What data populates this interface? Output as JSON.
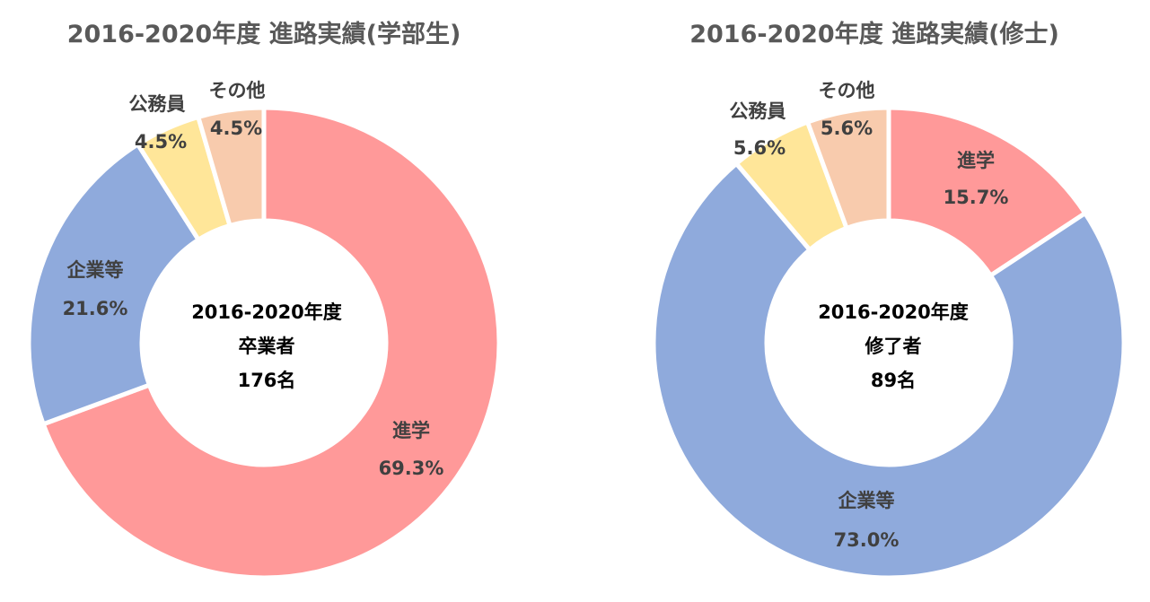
{
  "chart_data": [
    {
      "type": "pie",
      "donut": true,
      "title": "2016-2020年度 進路実績(学部生)",
      "center_label": [
        "2016-2020年度",
        "卒業者",
        "176名"
      ],
      "categories": [
        "進学",
        "企業等",
        "公務員",
        "その他"
      ],
      "values": [
        69.3,
        21.6,
        4.5,
        4.5
      ],
      "value_labels": [
        "69.3%",
        "21.6%",
        "4.5%",
        "4.5%"
      ],
      "colors": [
        "#ff9999",
        "#8faadc",
        "#ffe699",
        "#f8cbad"
      ],
      "legend": "none"
    },
    {
      "type": "pie",
      "donut": true,
      "title": "2016-2020年度 進路実績(修士)",
      "center_label": [
        "2016-2020年度",
        "修了者",
        "89名"
      ],
      "categories": [
        "進学",
        "企業等",
        "公務員",
        "その他"
      ],
      "values": [
        15.7,
        73.0,
        5.6,
        5.6
      ],
      "value_labels": [
        "15.7%",
        "73.0%",
        "5.6%",
        "5.6%"
      ],
      "colors": [
        "#ff9999",
        "#8faadc",
        "#ffe699",
        "#f8cbad"
      ],
      "legend": "none"
    }
  ]
}
